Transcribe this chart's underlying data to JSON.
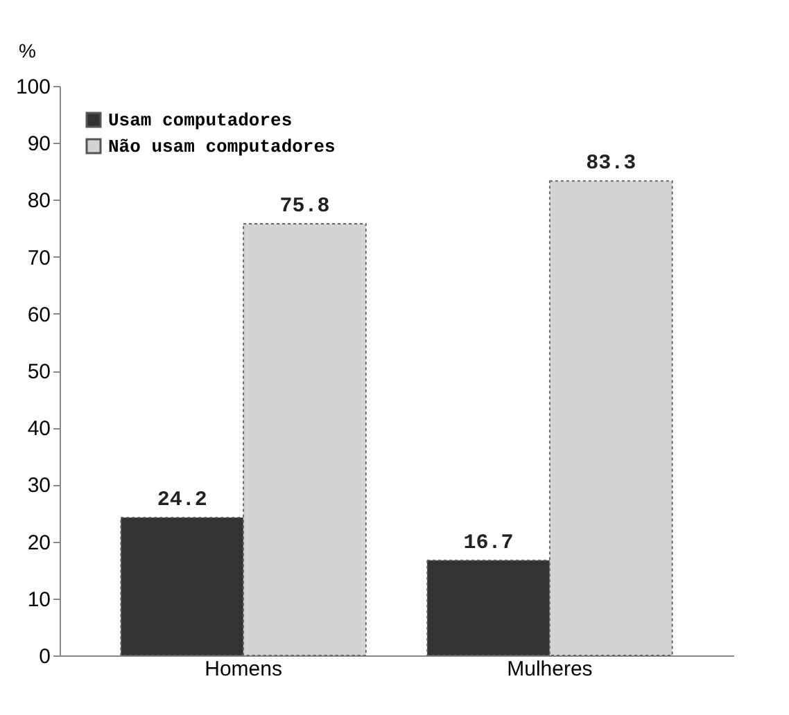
{
  "chart_data": {
    "type": "bar",
    "ylabel": "%",
    "categories": [
      "Homens",
      "Mulheres"
    ],
    "series": [
      {
        "name": "Usam computadores",
        "color": "#333333",
        "values": [
          24.2,
          16.7
        ]
      },
      {
        "name": "Não usam computadores",
        "color": "#d4d4d4",
        "values": [
          75.8,
          83.3
        ]
      }
    ],
    "ylim": [
      0,
      100
    ],
    "yticks": [
      0,
      10,
      20,
      30,
      40,
      50,
      60,
      70,
      80,
      90,
      100
    ],
    "data_labels": true,
    "legend": "top left",
    "grid": false
  }
}
